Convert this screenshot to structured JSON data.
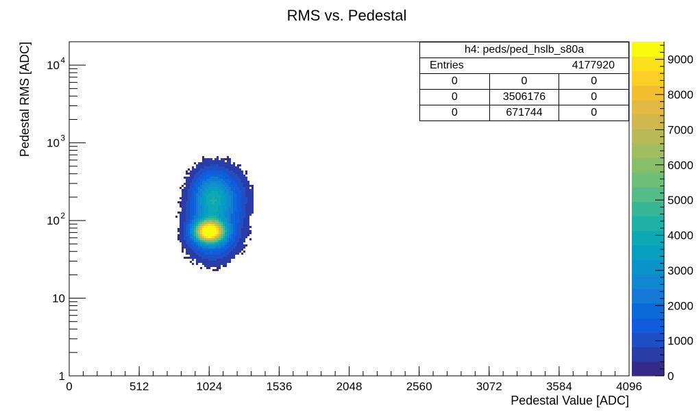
{
  "chart_data": {
    "type": "heatmap",
    "title": "RMS vs. Pedestal",
    "xlabel": "Pedestal Value [ADC]",
    "ylabel": "Pedestal RMS [ADC]",
    "xlim": [
      0,
      4096
    ],
    "ylim": [
      1,
      20000
    ],
    "y_scale": "log",
    "x_ticks": [
      0,
      512,
      1024,
      1536,
      2048,
      2560,
      3072,
      3584,
      4096
    ],
    "y_ticks": [
      {
        "value": 1,
        "base": "1",
        "exp": ""
      },
      {
        "value": 10,
        "base": "10",
        "exp": ""
      },
      {
        "value": 100,
        "base": "10",
        "exp": "2"
      },
      {
        "value": 1000,
        "base": "10",
        "exp": "3"
      },
      {
        "value": 10000,
        "base": "10",
        "exp": "4"
      }
    ],
    "z_range": [
      0,
      9500
    ],
    "z_ticks": [
      0,
      1000,
      2000,
      3000,
      4000,
      5000,
      6000,
      7000,
      8000,
      9000
    ],
    "palette": [
      "#352a87",
      "#2a3ca8",
      "#1f4fc4",
      "#0f5cdd",
      "#0b6ad9",
      "#1479d4",
      "#1287d1",
      "#0a94ca",
      "#069fc0",
      "#0ca9b4",
      "#1fb1a6",
      "#38b797",
      "#55bb87",
      "#6ebe78",
      "#87bf69",
      "#a0bd5f",
      "#b8ba58",
      "#cfb84f",
      "#e2b942",
      "#f3bf31",
      "#fbcf24",
      "#f9e21c",
      "#f9fb0e"
    ],
    "clusters": [
      {
        "x": 1120,
        "y": 190,
        "sx": 130,
        "sy_dec": 0.26,
        "peak": 1900
      },
      {
        "x": 1040,
        "y": 210,
        "sx": 80,
        "sy_dec": 0.18,
        "peak": 1300
      },
      {
        "x": 1024,
        "y": 72,
        "sx": 70,
        "sy_dec": 0.09,
        "peak": 9000
      },
      {
        "x": 1060,
        "y": 60,
        "sx": 130,
        "sy_dec": 0.2,
        "peak": 1500
      },
      {
        "x": 1020,
        "y": 130,
        "sx": 110,
        "sy_dec": 0.35,
        "peak": 1400
      }
    ]
  },
  "stats_box": {
    "title": "h4: peds/ped_hslb_s80a",
    "entries_label": "Entries",
    "entries_value": "4177920",
    "rows": [
      [
        "0",
        "0",
        "0"
      ],
      [
        "0",
        "3506176",
        "0"
      ],
      [
        "0",
        "671744",
        "0"
      ]
    ]
  }
}
